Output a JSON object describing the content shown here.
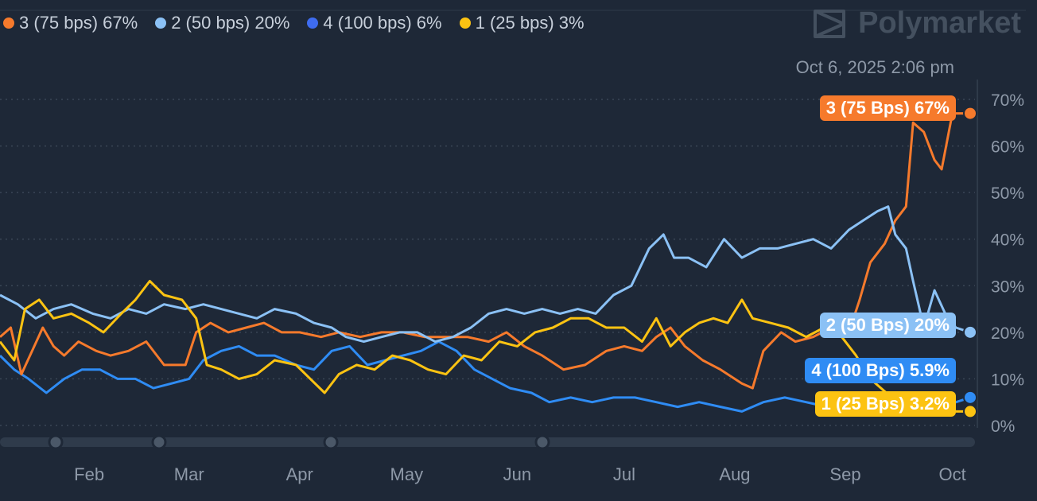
{
  "legend": [
    {
      "label": "3 (75 bps) 67%",
      "color": "#f67a2c"
    },
    {
      "label": "2 (50 bps) 20%",
      "color": "#8bc1f5"
    },
    {
      "label": "4 (100 bps) 6%",
      "color": "#3e6cf0"
    },
    {
      "label": "1 (25 bps) 3%",
      "color": "#fcc312"
    }
  ],
  "brand": {
    "name": "Polymarket"
  },
  "timestamp": "Oct 6, 2025 2:06 pm",
  "end_labels": [
    {
      "text": "3 (75 Bps) 67%",
      "color": "#f67a2c"
    },
    {
      "text": "2 (50 Bps) 20%",
      "color": "#8bc1f5"
    },
    {
      "text": "4 (100 Bps) 5.9%",
      "color": "#2f8cf4"
    },
    {
      "text": "1 (25 Bps) 3.2%",
      "color": "#fcc312"
    }
  ],
  "chart_data": {
    "type": "line",
    "x_labels": [
      "Feb",
      "Mar",
      "Apr",
      "May",
      "Jun",
      "Jul",
      "Aug",
      "Sep",
      "Oct"
    ],
    "y_ticks": [
      "0%",
      "10%",
      "20%",
      "30%",
      "40%",
      "50%",
      "60%",
      "70%"
    ],
    "ylim": [
      0,
      70
    ],
    "grid": "horizontal dotted",
    "x_ticks": [
      "2025-02-01",
      "2025-03-01",
      "2025-04-01",
      "2025-05-01",
      "2025-06-01",
      "2025-07-01",
      "2025-08-01",
      "2025-09-01",
      "2025-10-01"
    ],
    "x_range": [
      "2025-01-07",
      "2025-10-06"
    ],
    "series": [
      {
        "name": "3 (75 bps)",
        "color": "#f67a2c",
        "points": [
          [
            "2025-01-07",
            19
          ],
          [
            "2025-01-10",
            21
          ],
          [
            "2025-01-13",
            11
          ],
          [
            "2025-01-16",
            16
          ],
          [
            "2025-01-19",
            21
          ],
          [
            "2025-01-22",
            17
          ],
          [
            "2025-01-25",
            15
          ],
          [
            "2025-01-29",
            18
          ],
          [
            "2025-02-03",
            16
          ],
          [
            "2025-02-07",
            15
          ],
          [
            "2025-02-12",
            16
          ],
          [
            "2025-02-17",
            18
          ],
          [
            "2025-02-22",
            13
          ],
          [
            "2025-02-28",
            13
          ],
          [
            "2025-03-03",
            20
          ],
          [
            "2025-03-07",
            22
          ],
          [
            "2025-03-12",
            20
          ],
          [
            "2025-03-17",
            21
          ],
          [
            "2025-03-22",
            22
          ],
          [
            "2025-03-27",
            20
          ],
          [
            "2025-04-01",
            20
          ],
          [
            "2025-04-07",
            19
          ],
          [
            "2025-04-12",
            20
          ],
          [
            "2025-04-18",
            19
          ],
          [
            "2025-04-24",
            20
          ],
          [
            "2025-04-30",
            20
          ],
          [
            "2025-05-06",
            19
          ],
          [
            "2025-05-12",
            19
          ],
          [
            "2025-05-18",
            19
          ],
          [
            "2025-05-24",
            18
          ],
          [
            "2025-05-29",
            20
          ],
          [
            "2025-06-03",
            17
          ],
          [
            "2025-06-08",
            15
          ],
          [
            "2025-06-14",
            12
          ],
          [
            "2025-06-20",
            13
          ],
          [
            "2025-06-26",
            16
          ],
          [
            "2025-07-01",
            17
          ],
          [
            "2025-07-06",
            16
          ],
          [
            "2025-07-10",
            19
          ],
          [
            "2025-07-14",
            21
          ],
          [
            "2025-07-18",
            17
          ],
          [
            "2025-07-23",
            14
          ],
          [
            "2025-07-28",
            12
          ],
          [
            "2025-08-03",
            9
          ],
          [
            "2025-08-06",
            8
          ],
          [
            "2025-08-09",
            16
          ],
          [
            "2025-08-14",
            20
          ],
          [
            "2025-08-18",
            18
          ],
          [
            "2025-08-23",
            19
          ],
          [
            "2025-08-28",
            21
          ],
          [
            "2025-09-02",
            20
          ],
          [
            "2025-09-05",
            27
          ],
          [
            "2025-09-08",
            35
          ],
          [
            "2025-09-12",
            39
          ],
          [
            "2025-09-15",
            44
          ],
          [
            "2025-09-18",
            47
          ],
          [
            "2025-09-20",
            65
          ],
          [
            "2025-09-23",
            63
          ],
          [
            "2025-09-26",
            57
          ],
          [
            "2025-09-28",
            55
          ],
          [
            "2025-10-01",
            67
          ],
          [
            "2025-10-06",
            67
          ]
        ]
      },
      {
        "name": "2 (50 bps)",
        "color": "#8bc1f5",
        "points": [
          [
            "2025-01-07",
            28
          ],
          [
            "2025-01-12",
            26
          ],
          [
            "2025-01-17",
            23
          ],
          [
            "2025-01-22",
            25
          ],
          [
            "2025-01-27",
            26
          ],
          [
            "2025-02-02",
            24
          ],
          [
            "2025-02-07",
            23
          ],
          [
            "2025-02-12",
            25
          ],
          [
            "2025-02-17",
            24
          ],
          [
            "2025-02-22",
            26
          ],
          [
            "2025-02-28",
            25
          ],
          [
            "2025-03-05",
            26
          ],
          [
            "2025-03-10",
            25
          ],
          [
            "2025-03-15",
            24
          ],
          [
            "2025-03-20",
            23
          ],
          [
            "2025-03-25",
            25
          ],
          [
            "2025-03-31",
            24
          ],
          [
            "2025-04-05",
            22
          ],
          [
            "2025-04-10",
            21
          ],
          [
            "2025-04-14",
            19
          ],
          [
            "2025-04-19",
            18
          ],
          [
            "2025-04-24",
            19
          ],
          [
            "2025-04-29",
            20
          ],
          [
            "2025-05-04",
            20
          ],
          [
            "2025-05-09",
            18
          ],
          [
            "2025-05-14",
            19
          ],
          [
            "2025-05-19",
            21
          ],
          [
            "2025-05-24",
            24
          ],
          [
            "2025-05-29",
            25
          ],
          [
            "2025-06-03",
            24
          ],
          [
            "2025-06-08",
            25
          ],
          [
            "2025-06-13",
            24
          ],
          [
            "2025-06-18",
            25
          ],
          [
            "2025-06-23",
            24
          ],
          [
            "2025-06-28",
            28
          ],
          [
            "2025-07-03",
            30
          ],
          [
            "2025-07-08",
            38
          ],
          [
            "2025-07-12",
            41
          ],
          [
            "2025-07-15",
            36
          ],
          [
            "2025-07-19",
            36
          ],
          [
            "2025-07-24",
            34
          ],
          [
            "2025-07-29",
            40
          ],
          [
            "2025-08-03",
            36
          ],
          [
            "2025-08-08",
            38
          ],
          [
            "2025-08-13",
            38
          ],
          [
            "2025-08-18",
            39
          ],
          [
            "2025-08-23",
            40
          ],
          [
            "2025-08-28",
            38
          ],
          [
            "2025-09-02",
            42
          ],
          [
            "2025-09-06",
            44
          ],
          [
            "2025-09-10",
            46
          ],
          [
            "2025-09-13",
            47
          ],
          [
            "2025-09-15",
            41
          ],
          [
            "2025-09-18",
            38
          ],
          [
            "2025-09-20",
            31
          ],
          [
            "2025-09-23",
            21
          ],
          [
            "2025-09-26",
            29
          ],
          [
            "2025-09-29",
            24
          ],
          [
            "2025-10-02",
            21
          ],
          [
            "2025-10-06",
            20
          ]
        ]
      },
      {
        "name": "4 (100 bps)",
        "color": "#2f8cf4",
        "points": [
          [
            "2025-01-07",
            15
          ],
          [
            "2025-01-11",
            12
          ],
          [
            "2025-01-15",
            10
          ],
          [
            "2025-01-20",
            7
          ],
          [
            "2025-01-25",
            10
          ],
          [
            "2025-01-30",
            12
          ],
          [
            "2025-02-04",
            12
          ],
          [
            "2025-02-09",
            10
          ],
          [
            "2025-02-14",
            10
          ],
          [
            "2025-02-19",
            8
          ],
          [
            "2025-02-24",
            9
          ],
          [
            "2025-03-01",
            10
          ],
          [
            "2025-03-05",
            14
          ],
          [
            "2025-03-10",
            16
          ],
          [
            "2025-03-15",
            17
          ],
          [
            "2025-03-20",
            15
          ],
          [
            "2025-03-25",
            15
          ],
          [
            "2025-03-31",
            13
          ],
          [
            "2025-04-05",
            12
          ],
          [
            "2025-04-10",
            16
          ],
          [
            "2025-04-15",
            17
          ],
          [
            "2025-04-20",
            13
          ],
          [
            "2025-04-25",
            14
          ],
          [
            "2025-04-30",
            15
          ],
          [
            "2025-05-05",
            16
          ],
          [
            "2025-05-10",
            18
          ],
          [
            "2025-05-15",
            16
          ],
          [
            "2025-05-20",
            12
          ],
          [
            "2025-05-25",
            10
          ],
          [
            "2025-05-30",
            8
          ],
          [
            "2025-06-05",
            7
          ],
          [
            "2025-06-10",
            5
          ],
          [
            "2025-06-16",
            6
          ],
          [
            "2025-06-22",
            5
          ],
          [
            "2025-06-28",
            6
          ],
          [
            "2025-07-04",
            6
          ],
          [
            "2025-07-10",
            5
          ],
          [
            "2025-07-16",
            4
          ],
          [
            "2025-07-22",
            5
          ],
          [
            "2025-07-28",
            4
          ],
          [
            "2025-08-03",
            3
          ],
          [
            "2025-08-09",
            5
          ],
          [
            "2025-08-15",
            6
          ],
          [
            "2025-08-21",
            5
          ],
          [
            "2025-08-27",
            4
          ],
          [
            "2025-09-02",
            5
          ],
          [
            "2025-09-08",
            4
          ],
          [
            "2025-09-14",
            5
          ],
          [
            "2025-09-20",
            4
          ],
          [
            "2025-09-26",
            5
          ],
          [
            "2025-10-02",
            5
          ],
          [
            "2025-10-06",
            6
          ]
        ]
      },
      {
        "name": "1 (25 bps)",
        "color": "#fcc312",
        "points": [
          [
            "2025-01-07",
            18
          ],
          [
            "2025-01-11",
            14
          ],
          [
            "2025-01-14",
            25
          ],
          [
            "2025-01-18",
            27
          ],
          [
            "2025-01-22",
            23
          ],
          [
            "2025-01-27",
            24
          ],
          [
            "2025-02-01",
            22
          ],
          [
            "2025-02-05",
            20
          ],
          [
            "2025-02-10",
            24
          ],
          [
            "2025-02-14",
            27
          ],
          [
            "2025-02-18",
            31
          ],
          [
            "2025-02-22",
            28
          ],
          [
            "2025-02-27",
            27
          ],
          [
            "2025-03-03",
            23
          ],
          [
            "2025-03-06",
            13
          ],
          [
            "2025-03-10",
            12
          ],
          [
            "2025-03-15",
            10
          ],
          [
            "2025-03-20",
            11
          ],
          [
            "2025-03-25",
            14
          ],
          [
            "2025-03-31",
            13
          ],
          [
            "2025-04-04",
            10
          ],
          [
            "2025-04-08",
            7
          ],
          [
            "2025-04-12",
            11
          ],
          [
            "2025-04-17",
            13
          ],
          [
            "2025-04-22",
            12
          ],
          [
            "2025-04-27",
            15
          ],
          [
            "2025-05-02",
            14
          ],
          [
            "2025-05-07",
            12
          ],
          [
            "2025-05-12",
            11
          ],
          [
            "2025-05-17",
            15
          ],
          [
            "2025-05-22",
            14
          ],
          [
            "2025-05-27",
            18
          ],
          [
            "2025-06-01",
            17
          ],
          [
            "2025-06-06",
            20
          ],
          [
            "2025-06-11",
            21
          ],
          [
            "2025-06-16",
            23
          ],
          [
            "2025-06-21",
            23
          ],
          [
            "2025-06-26",
            21
          ],
          [
            "2025-07-01",
            21
          ],
          [
            "2025-07-06",
            18
          ],
          [
            "2025-07-10",
            23
          ],
          [
            "2025-07-14",
            17
          ],
          [
            "2025-07-18",
            20
          ],
          [
            "2025-07-22",
            22
          ],
          [
            "2025-07-26",
            23
          ],
          [
            "2025-07-30",
            22
          ],
          [
            "2025-08-03",
            27
          ],
          [
            "2025-08-06",
            23
          ],
          [
            "2025-08-11",
            22
          ],
          [
            "2025-08-16",
            21
          ],
          [
            "2025-08-21",
            19
          ],
          [
            "2025-08-26",
            21
          ],
          [
            "2025-08-31",
            19
          ],
          [
            "2025-09-04",
            15
          ],
          [
            "2025-09-08",
            10
          ],
          [
            "2025-09-14",
            6
          ],
          [
            "2025-09-20",
            5
          ],
          [
            "2025-09-26",
            4
          ],
          [
            "2025-10-02",
            3
          ],
          [
            "2025-10-06",
            3
          ]
        ]
      }
    ]
  }
}
